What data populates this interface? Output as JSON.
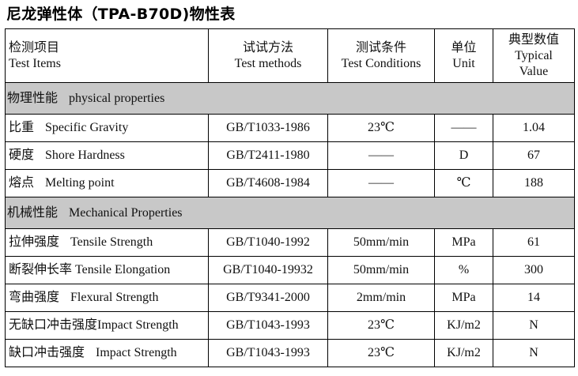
{
  "title": "尼龙弹性体（TPA-B70D)物性表",
  "header": {
    "item_cn": "检测项目",
    "item_en": "Test Items",
    "method_cn": "试试方法",
    "method_en": "Test methods",
    "cond_cn": "测试条件",
    "cond_en": "Test Conditions",
    "unit_cn": "单位",
    "unit_en": "Unit",
    "value_cn": "典型数值",
    "value_en1": "Typical",
    "value_en2": "Value"
  },
  "sections": [
    {
      "cn": "物理性能",
      "en": "physical properties",
      "rows": [
        {
          "cn": "比重",
          "en": "Specific Gravity",
          "method": "GB/T1033-1986",
          "condition": "23℃",
          "unit": "——",
          "value": "1.04"
        },
        {
          "cn": "硬度",
          "en": "Shore Hardness",
          "method": "GB/T2411-1980",
          "condition": "——",
          "unit": "D",
          "value": "67"
        },
        {
          "cn": "熔点",
          "en": "Melting point",
          "method": "GB/T4608-1984",
          "condition": "——",
          "unit": "℃",
          "value": "188"
        }
      ]
    },
    {
      "cn": "机械性能",
      "en": "Mechanical Properties",
      "rows": [
        {
          "cn": "拉伸强度",
          "en": "Tensile Strength",
          "method": "GB/T1040-1992",
          "condition": "50mm/min",
          "unit": "MPa",
          "value": "61"
        },
        {
          "cn": "断裂伸长率",
          "en": "Tensile Elongation",
          "method": "GB/T1040-19932",
          "condition": "50mm/min",
          "unit": "%",
          "value": "300"
        },
        {
          "cn": "弯曲强度",
          "en": "Flexural Strength",
          "method": "GB/T9341-2000",
          "condition": "2mm/min",
          "unit": "MPa",
          "value": "14"
        },
        {
          "cn": "无缺口冲击强度",
          "en": "Impact Strength",
          "method": "GB/T1043-1993",
          "condition": "23℃",
          "unit": "KJ/m2",
          "value": "N"
        },
        {
          "cn": "缺口冲击强度",
          "en": "Impact Strength",
          "method": "GB/T1043-1993",
          "condition": "23℃",
          "unit": "KJ/m2",
          "value": "N"
        }
      ]
    }
  ]
}
